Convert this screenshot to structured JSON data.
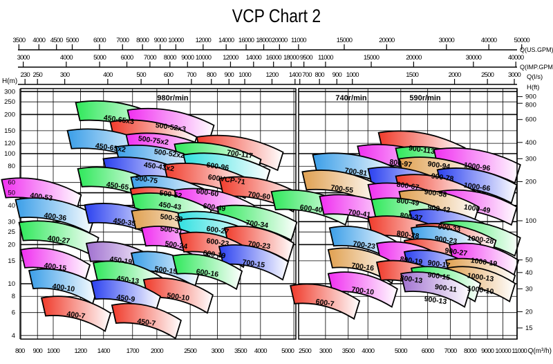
{
  "chart_data": {
    "type": "pump-selection-chart",
    "title": "VCP Chart 2",
    "y_scale": "log",
    "x_scale": "log",
    "ylabel": "H(m)",
    "ylabel_right": "H(ft)",
    "xlabel": "Q(m³/h)",
    "top_axis_labels": {
      "us_gpm": "Q(US.GPM)",
      "imp_gpm": "Q(IMP.GPM)",
      "ls": "Q(l/s)"
    },
    "y_ticks": [
      300,
      250,
      200,
      150,
      120,
      100,
      80,
      60,
      50,
      40,
      30,
      25,
      20,
      15,
      10,
      8,
      6,
      4
    ],
    "y_ticks_ft": [
      900,
      800,
      600,
      400,
      300,
      200,
      100,
      50,
      40,
      30,
      20,
      15
    ],
    "ylim": [
      4,
      300
    ],
    "grid": true,
    "panels": [
      {
        "speeds": [
          "980r/min"
        ],
        "xlim": [
          800,
          5000
        ],
        "x_ticks": [
          800,
          900,
          1000,
          1200,
          1400,
          1700,
          2000,
          2500,
          3000,
          3500,
          4000,
          5000
        ],
        "us_gpm_ticks": [
          3500,
          4000,
          4500,
          5000,
          6000,
          7000,
          8000,
          9000,
          10000,
          12000,
          14000,
          16000,
          18000,
          20000
        ],
        "imp_gpm_ticks": [
          3000,
          4000,
          5000,
          6000,
          7000,
          8000,
          9000,
          10000,
          12000,
          14000,
          16000,
          18000
        ],
        "ls_ticks": [
          230,
          250,
          300,
          400,
          500,
          600,
          700,
          800,
          900,
          1000,
          1200,
          1400
        ],
        "pumps": [
          {
            "name": "450-65x3",
            "q": 1552,
            "h": 184,
            "color": "green"
          },
          {
            "name": "500-52x3",
            "q": 2195,
            "h": 161,
            "color": "magenta"
          },
          {
            "name": "500-75x2",
            "q": 1955,
            "h": 131,
            "color": "red"
          },
          {
            "name": "450-65x2",
            "q": 1468,
            "h": 112,
            "color": "lightblue"
          },
          {
            "name": "700-117",
            "q": 3486,
            "h": 100,
            "color": "red"
          },
          {
            "name": "500-52x2",
            "q": 2175,
            "h": 104,
            "color": "magenta"
          },
          {
            "name": "600-96",
            "q": 3005,
            "h": 88,
            "color": "green"
          },
          {
            "name": "450-43x2",
            "q": 2030,
            "h": 84,
            "color": "lightblue"
          },
          {
            "name": "600VCP-71",
            "q": 3191,
            "h": 73,
            "color": "cyan"
          },
          {
            "name": "500-75",
            "q": 1866,
            "h": 68,
            "color": "blue"
          },
          {
            "name": "450-65",
            "q": 1538,
            "h": 57,
            "color": "green"
          },
          {
            "name": "600-60",
            "q": 2805,
            "h": 61,
            "color": "red"
          },
          {
            "name": "400-53",
            "q": 924,
            "h": 47,
            "color": "magenta"
          },
          {
            "name": "700-60",
            "q": 3966,
            "h": 48,
            "color": "red"
          },
          {
            "name": "500-52",
            "q": 2195,
            "h": 49,
            "color": "lightblue"
          },
          {
            "name": "450-43",
            "q": 2185,
            "h": 40,
            "color": "red"
          },
          {
            "name": "600-49",
            "q": 2938,
            "h": 39,
            "color": "magenta"
          },
          {
            "name": "500-38",
            "q": 2205,
            "h": 36,
            "color": "green"
          },
          {
            "name": "400-36",
            "q": 1014,
            "h": 33,
            "color": "lightblue"
          },
          {
            "name": "450-35",
            "q": 1610,
            "h": 30,
            "color": "blue"
          },
          {
            "name": "700-34",
            "q": 3910,
            "h": 29,
            "color": "green"
          },
          {
            "name": "500-31",
            "q": 2205,
            "h": 27,
            "color": "orange"
          },
          {
            "name": "600-27",
            "q": 3005,
            "h": 26,
            "color": "cyan"
          },
          {
            "name": "600-23",
            "q": 3005,
            "h": 23,
            "color": "cyan"
          },
          {
            "name": "400-27",
            "q": 1038,
            "h": 22,
            "color": "green"
          },
          {
            "name": "700-23",
            "q": 3966,
            "h": 20,
            "color": "red"
          },
          {
            "name": "500-24",
            "q": 2277,
            "h": 20,
            "color": "magenta"
          },
          {
            "name": "600-19",
            "q": 2938,
            "h": 18,
            "color": "red"
          },
          {
            "name": "450-19",
            "q": 1573,
            "h": 15.2,
            "color": "lavender"
          },
          {
            "name": "700-15",
            "q": 3822,
            "h": 14.4,
            "color": "blue"
          },
          {
            "name": "400-15",
            "q": 1014,
            "h": 13.6,
            "color": "magenta"
          },
          {
            "name": "500-15",
            "q": 2125,
            "h": 12.8,
            "color": "lightblue"
          },
          {
            "name": "600-16",
            "q": 2805,
            "h": 12.2,
            "color": "green"
          },
          {
            "name": "450-13",
            "q": 1648,
            "h": 10.8,
            "color": "green"
          },
          {
            "name": "400-10",
            "q": 1072,
            "h": 9.4,
            "color": "lightblue"
          },
          {
            "name": "500-10",
            "q": 2308,
            "h": 8.0,
            "color": "red"
          },
          {
            "name": "450-9",
            "q": 1625,
            "h": 7.8,
            "color": "blue"
          },
          {
            "name": "400-7",
            "q": 1165,
            "h": 5.8,
            "color": "red"
          },
          {
            "name": "450-7",
            "q": 1866,
            "h": 5.1,
            "color": "red"
          }
        ]
      },
      {
        "speeds": [
          "740r/min",
          "590r/min"
        ],
        "xlim": [
          2500,
          11000
        ],
        "x_ticks": [
          2500,
          3000,
          3500,
          4000,
          5000,
          6000,
          7000,
          8000,
          9000,
          10000,
          11000
        ],
        "us_gpm_ticks": [
          11000,
          15000,
          20000,
          30000,
          40000,
          50000
        ],
        "imp_gpm_ticks": [
          9500,
          11000,
          15000,
          20000,
          30000,
          40000
        ],
        "ls_ticks": [
          700,
          800,
          900,
          1000,
          1500,
          2000,
          2500,
          3000
        ],
        "pumps": [
          {
            "name": "900-113",
            "q": 5764,
            "h": 108,
            "color": "red"
          },
          {
            "name": "800-97",
            "q": 5000,
            "h": 85,
            "color": "magenta"
          },
          {
            "name": "900-94",
            "q": 6477,
            "h": 82,
            "color": "green"
          },
          {
            "name": "1000-96",
            "q": 8393,
            "h": 80,
            "color": "magenta"
          },
          {
            "name": "700-81",
            "q": 3690,
            "h": 73,
            "color": "lightblue"
          },
          {
            "name": "900-78",
            "q": 6635,
            "h": 68,
            "color": "orange"
          },
          {
            "name": "800-67",
            "q": 5247,
            "h": 57,
            "color": "blue"
          },
          {
            "name": "1000-66",
            "q": 8393,
            "h": 56,
            "color": "blue"
          },
          {
            "name": "700-55",
            "q": 3357,
            "h": 54,
            "color": "orange"
          },
          {
            "name": "900-58",
            "q": 6330,
            "h": 50,
            "color": "red"
          },
          {
            "name": "800-49",
            "q": 5247,
            "h": 43,
            "color": "magenta"
          },
          {
            "name": "1000-49",
            "q": 8393,
            "h": 38,
            "color": "magenta"
          },
          {
            "name": "900-42",
            "q": 6477,
            "h": 38,
            "color": "orange"
          },
          {
            "name": "600-40",
            "q": 2722,
            "h": 38,
            "color": "green"
          },
          {
            "name": "700-41",
            "q": 3777,
            "h": 35,
            "color": "magenta"
          },
          {
            "name": "800-37",
            "q": 5370,
            "h": 33,
            "color": "green"
          },
          {
            "name": "900-33",
            "q": 6950,
            "h": 27,
            "color": "blue"
          },
          {
            "name": "800-28",
            "q": 5247,
            "h": 24,
            "color": "red"
          },
          {
            "name": "1000-28",
            "q": 8590,
            "h": 22,
            "color": "green"
          },
          {
            "name": "900-27",
            "q": 7280,
            "h": 21,
            "color": "red"
          },
          {
            "name": "700-23",
            "q": 3900,
            "h": 20,
            "color": "lightblue"
          },
          {
            "name": "900-23",
            "q": 6790,
            "h": 20,
            "color": "lightblue"
          },
          {
            "name": "900-17",
            "q": 6477,
            "h": 16,
            "color": "red"
          },
          {
            "name": "800-19",
            "q": 5370,
            "h": 15.2,
            "color": "magenta"
          },
          {
            "name": "1000-19",
            "q": 8790,
            "h": 14.8,
            "color": "magenta"
          },
          {
            "name": "700-16",
            "q": 3864,
            "h": 13.6,
            "color": "orange"
          },
          {
            "name": "900-15",
            "q": 6477,
            "h": 13.1,
            "color": "blue"
          },
          {
            "name": "1000-13",
            "q": 8590,
            "h": 11.3,
            "color": "orange"
          },
          {
            "name": "800-13",
            "q": 5370,
            "h": 10.9,
            "color": "red"
          },
          {
            "name": "1000-10",
            "q": 8590,
            "h": 9.8,
            "color": "orange"
          },
          {
            "name": "900-11",
            "q": 6790,
            "h": 9.8,
            "color": "green"
          },
          {
            "name": "900-13",
            "q": 6330,
            "h": 8.9,
            "color": "lavender"
          },
          {
            "name": "700-10",
            "q": 3864,
            "h": 8.9,
            "color": "magenta"
          },
          {
            "name": "600-7",
            "q": 2990,
            "h": 7.2,
            "color": "red"
          }
        ]
      }
    ],
    "colors": {
      "red": "#f03a2a",
      "green": "#2ee85a",
      "magenta": "#f02ef0",
      "blue": "#2a40f0",
      "lightblue": "#3a9ee8",
      "orange": "#e0a050",
      "cyan": "#30e0e0",
      "lavender": "#a070d0"
    }
  }
}
